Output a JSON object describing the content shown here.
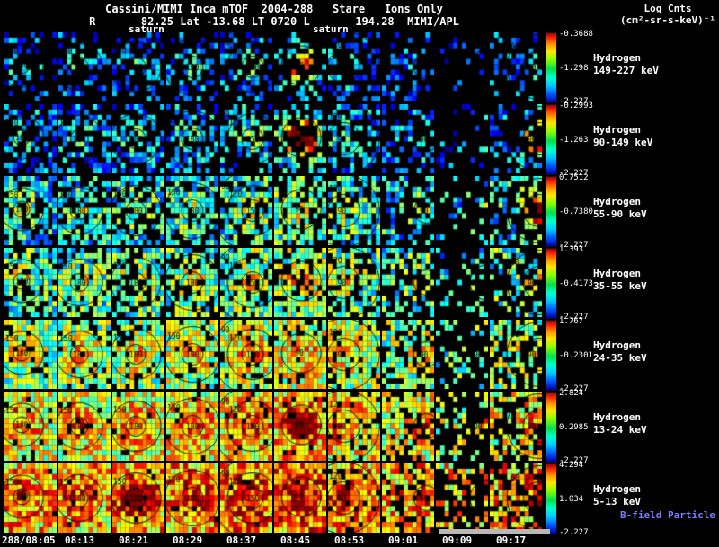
{
  "header": {
    "title": "Cassini/MIMI Inca mTOF  2004-288   Stare   Ions Only",
    "ephemeris": "R       82.25 Lat -13.68 LT 0720 L       194.28  MIMI/APL",
    "colorbar_title_line1": "Log Cnts",
    "colorbar_title_line2": "(cm²-sr-s-keV)⁻¹"
  },
  "overlays": {
    "saturn_label_1": "saturn",
    "saturn_label_2": "saturn"
  },
  "footer": {
    "b_field_note": "B-field Particle Flow"
  },
  "colors": {
    "background": "#000000",
    "text": "#ffffff",
    "b_field_note": "#7b7bff",
    "indicator_bar": "#b8b8b8"
  },
  "chart_data": {
    "type": "heatmap",
    "title": "Cassini/MIMI Inca mTOF 2004-288 Stare Ions Only",
    "colorbar_units": "Log Cnts (cm²-sr-s-keV)⁻¹",
    "colormap": "jet",
    "time_labels": [
      "288/08:05",
      "08:13",
      "08:21",
      "08:29",
      "08:37",
      "08:45",
      "08:53",
      "09:01",
      "09:09",
      "09:17"
    ],
    "rows": [
      {
        "species": "Hydrogen",
        "energy": "149-227 keV",
        "cbar_max": "-0.3688",
        "cbar_mid": "-1.298",
        "cbar_min": "-2.227",
        "render": {
          "density": 0.34,
          "base": 0.02,
          "spread": 0.33
        }
      },
      {
        "species": "Hydrogen",
        "energy": "90-149 keV",
        "cbar_max": "-0.2993",
        "cbar_mid": "-1.263",
        "cbar_min": "-2.227",
        "render": {
          "density": 0.46,
          "base": 0.05,
          "spread": 0.36
        }
      },
      {
        "species": "Hydrogen",
        "energy": "55-90 keV",
        "cbar_max": "0.7512",
        "cbar_mid": "-0.7380",
        "cbar_min": "-2.227",
        "render": {
          "density": 0.62,
          "base": 0.14,
          "spread": 0.4
        }
      },
      {
        "species": "Hydrogen",
        "energy": "35-55 keV",
        "cbar_max": "1.393",
        "cbar_mid": "-0.4173",
        "cbar_min": "-2.227",
        "render": {
          "density": 0.72,
          "base": 0.2,
          "spread": 0.42
        }
      },
      {
        "species": "Hydrogen",
        "energy": "24-35 keV",
        "cbar_max": "1.767",
        "cbar_mid": "-0.2301",
        "cbar_min": "-2.227",
        "render": {
          "density": 0.86,
          "base": 0.28,
          "spread": 0.42
        }
      },
      {
        "species": "Hydrogen",
        "energy": "13-24 keV",
        "cbar_max": "2.824",
        "cbar_mid": "0.2985",
        "cbar_min": "-2.227",
        "render": {
          "density": 0.94,
          "base": 0.38,
          "spread": 0.42
        }
      },
      {
        "species": "Hydrogen",
        "energy": "5-13 keV",
        "cbar_max": "4.294",
        "cbar_mid": "1.034",
        "cbar_min": "-2.227",
        "render": {
          "density": 0.97,
          "base": 0.46,
          "spread": 0.45
        }
      }
    ],
    "column_density": [
      1,
      1,
      1,
      1,
      1,
      1,
      0.92,
      0.72,
      0.3,
      0.62
    ],
    "column_boost": [
      0,
      0,
      0.02,
      0.03,
      0.05,
      0.08,
      0.03,
      0,
      -0.04,
      0.02
    ],
    "contours": [
      {
        "cx": 0.33,
        "cy": 0.48,
        "rings": [
          {
            "r": 9,
            "label": "180"
          },
          {
            "r": 24,
            "label": "150"
          }
        ]
      },
      {
        "cx": 0.4,
        "cy": 0.5,
        "rings": [
          {
            "r": 10,
            "label": "180"
          },
          {
            "r": 26,
            "label": "150"
          }
        ]
      },
      {
        "cx": 0.45,
        "cy": 0.5,
        "rings": [
          {
            "r": 11,
            "label": "180"
          },
          {
            "r": 28,
            "label": "150"
          }
        ]
      },
      {
        "cx": 0.5,
        "cy": 0.5,
        "rings": [
          {
            "r": 12,
            "label": "180"
          },
          {
            "r": 31,
            "label": "150"
          }
        ]
      },
      {
        "cx": 0.62,
        "cy": 0.5,
        "rings": [
          {
            "r": 12,
            "label": "150"
          },
          {
            "r": 28,
            "label": "120"
          },
          {
            "r": 45,
            "label": "90"
          }
        ]
      },
      {
        "cx": 0.52,
        "cy": 0.48,
        "rings": [
          {
            "r": 22,
            "label": "90"
          }
        ]
      },
      {
        "cx": 0.3,
        "cy": 0.5,
        "rings": [
          {
            "r": 18,
            "label": "90"
          },
          {
            "r": 40,
            "label": "120"
          }
        ]
      },
      {
        "cx": 0.85,
        "cy": 0.5,
        "rings": [
          {
            "r": 14,
            "label": "90"
          }
        ]
      },
      {
        "cx": 1.0,
        "cy": 0.5,
        "rings": [
          {
            "r": 20,
            "label": "90"
          }
        ]
      },
      {
        "cx": 0.95,
        "cy": 0.5,
        "rings": [
          {
            "r": 18,
            "label": "90"
          },
          {
            "r": 36,
            "label": "60"
          }
        ]
      }
    ],
    "hotspots": [
      {
        "row": 1,
        "col": 6,
        "strength": 0.45
      },
      {
        "row": 2,
        "col": 6,
        "strength": 0.85
      },
      {
        "row": 2,
        "col": 10,
        "strength": 0.5
      },
      {
        "row": 3,
        "col": 10,
        "strength": 0.55
      },
      {
        "row": 6,
        "col": 6,
        "strength": 0.3
      },
      {
        "row": 7,
        "col": 3,
        "strength": 0.35
      }
    ]
  }
}
